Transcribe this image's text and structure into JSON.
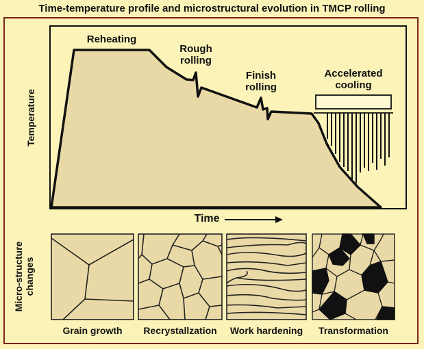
{
  "title": "Time-temperature profile and microstructural evolution in TMCP rolling",
  "axes": {
    "y_label": "Temperature",
    "x_label": "Time"
  },
  "stages": {
    "reheating": "Reheating",
    "rough_rolling": [
      "Rough",
      "rolling"
    ],
    "finish_rolling": [
      "Finish",
      "rolling"
    ],
    "accelerated_cooling": [
      "Accelerated",
      "cooling"
    ]
  },
  "microstructure": {
    "side_label": [
      "Micro-structure",
      "changes"
    ],
    "panels": [
      "Grain growth",
      "Recrystallzation",
      "Work hardening",
      "Transformation"
    ]
  },
  "colors": {
    "background": "#fbf3b8",
    "fill": "#e9d9a6",
    "frame": "#7a2418",
    "ink": "#111111"
  }
}
